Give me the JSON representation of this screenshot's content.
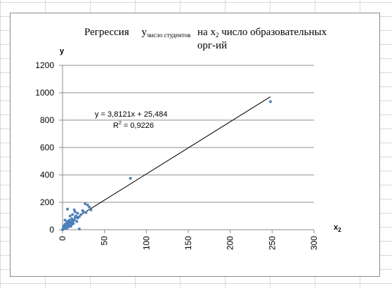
{
  "chart_data": {
    "type": "scatter",
    "title": {
      "lead": "Регрессия",
      "var": "y",
      "var_sub": "число студентов",
      "mid": "на x",
      "mid_sub": "2",
      "line1_tail": " число образовательных",
      "line2": "орг-ий"
    },
    "xlabel": {
      "main": "x",
      "sub": "2"
    },
    "ylabel": "y",
    "xlim": [
      0,
      300
    ],
    "ylim": [
      0,
      1200
    ],
    "x_ticks": [
      "0",
      "50",
      "100",
      "150",
      "200",
      "250",
      "300"
    ],
    "y_ticks": [
      "0",
      "200",
      "400",
      "600",
      "800",
      "1000",
      "1200"
    ],
    "grid": {
      "horizontal": true,
      "vertical": false
    },
    "legend": "none",
    "marker_color": "#4f81bd",
    "trendline": {
      "slope": 3.8121,
      "intercept": 25.484,
      "x_range": [
        0,
        248
      ],
      "equation": "y = 3,8121x + 25,484",
      "r2_label": "R",
      "r2_sup": "2",
      "r2_value": " = 0,9226",
      "color": "#000000"
    },
    "points": [
      {
        "x": 0,
        "y": 0
      },
      {
        "x": 1,
        "y": 5
      },
      {
        "x": 1,
        "y": 20
      },
      {
        "x": 2,
        "y": 8
      },
      {
        "x": 2,
        "y": 30
      },
      {
        "x": 3,
        "y": 12
      },
      {
        "x": 3,
        "y": 40
      },
      {
        "x": 4,
        "y": 15
      },
      {
        "x": 4,
        "y": 25
      },
      {
        "x": 5,
        "y": 50
      },
      {
        "x": 5,
        "y": 10
      },
      {
        "x": 6,
        "y": 30
      },
      {
        "x": 6,
        "y": 60
      },
      {
        "x": 7,
        "y": 20
      },
      {
        "x": 7,
        "y": 45
      },
      {
        "x": 8,
        "y": 35
      },
      {
        "x": 8,
        "y": 70
      },
      {
        "x": 9,
        "y": 40
      },
      {
        "x": 10,
        "y": 55
      },
      {
        "x": 10,
        "y": 25
      },
      {
        "x": 11,
        "y": 80
      },
      {
        "x": 12,
        "y": 60
      },
      {
        "x": 12,
        "y": 110
      },
      {
        "x": 13,
        "y": 45
      },
      {
        "x": 14,
        "y": 70
      },
      {
        "x": 15,
        "y": 90
      },
      {
        "x": 15,
        "y": 130
      },
      {
        "x": 16,
        "y": 100
      },
      {
        "x": 17,
        "y": 60
      },
      {
        "x": 18,
        "y": 85
      },
      {
        "x": 18,
        "y": 120
      },
      {
        "x": 20,
        "y": 95
      },
      {
        "x": 20,
        "y": 5
      },
      {
        "x": 22,
        "y": 110
      },
      {
        "x": 24,
        "y": 140
      },
      {
        "x": 25,
        "y": 130
      },
      {
        "x": 27,
        "y": 190
      },
      {
        "x": 28,
        "y": 125
      },
      {
        "x": 30,
        "y": 180
      },
      {
        "x": 32,
        "y": 165
      },
      {
        "x": 34,
        "y": 145
      },
      {
        "x": 6,
        "y": 150
      },
      {
        "x": 9,
        "y": 100
      },
      {
        "x": 3,
        "y": 70
      },
      {
        "x": 14,
        "y": 145
      },
      {
        "x": 11,
        "y": 40
      },
      {
        "x": 81,
        "y": 375
      },
      {
        "x": 248,
        "y": 935
      }
    ]
  }
}
